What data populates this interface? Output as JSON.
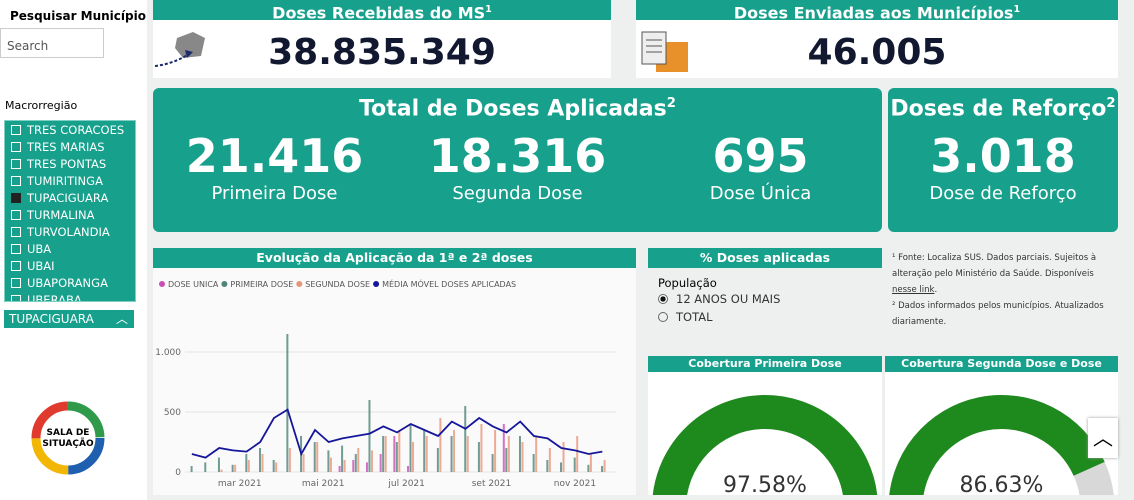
{
  "sidebar": {
    "search_title": "Pesquisar Município",
    "search_placeholder": "Search",
    "slicer_label": "Macrorregião",
    "options": [
      "TRES CORACOES",
      "TRES MARIAS",
      "TRES PONTAS",
      "TUMIRITINGA",
      "TUPACIGUARA",
      "TURMALINA",
      "TURVOLANDIA",
      "UBA",
      "UBAI",
      "UBAPORANGA",
      "UBERABA"
    ],
    "checked_option": 4,
    "selected_value": "TUPACIGUARA",
    "logo_text": [
      "SALA DE",
      "SITUAÇÃO"
    ]
  },
  "cards": {
    "received": {
      "title": "Doses Recebidas do MS",
      "sup": "1",
      "value": "38.835.349"
    },
    "sent": {
      "title": "Doses Enviadas aos Municípios",
      "sup": "1",
      "value": "46.005"
    },
    "applied": {
      "title": "Total de Doses Aplicadas",
      "sup": "2",
      "items": [
        {
          "value": "21.416",
          "label": "Primeira Dose"
        },
        {
          "value": "18.316",
          "label": "Segunda Dose"
        },
        {
          "value": "695",
          "label": "Dose Única"
        }
      ]
    },
    "booster": {
      "title": "Doses de Reforço",
      "sup": "2",
      "value": "3.018",
      "label": "Dose de Reforço"
    }
  },
  "chart_data": {
    "type": "combo",
    "title": "Evolução da Aplicação da 1ª e 2ª doses",
    "x": [
      25,
      35,
      45,
      55,
      65,
      75,
      85,
      95,
      105,
      115,
      125,
      135,
      145,
      155,
      165,
      175,
      185,
      195,
      205,
      215,
      225,
      235,
      245,
      255,
      265,
      275,
      285,
      295,
      305,
      315,
      325
    ],
    "xlim": [
      20,
      335
    ],
    "xticks": [
      {
        "value": 60,
        "label": "mar 2021"
      },
      {
        "value": 121,
        "label": "mai 2021"
      },
      {
        "value": 182,
        "label": "jul 2021"
      },
      {
        "value": 244,
        "label": "set 2021"
      },
      {
        "value": 305,
        "label": "nov 2021"
      }
    ],
    "ylim": [
      0,
      1250
    ],
    "yticks": [
      0,
      500,
      {
        "value": 1000,
        "label": "1.000"
      }
    ],
    "series": [
      {
        "name": "DOSE UNICA",
        "color": "#c94fb5",
        "type": "bar",
        "values": [
          0,
          0,
          0,
          0,
          0,
          0,
          0,
          0,
          0,
          0,
          0,
          50,
          100,
          80,
          150,
          300,
          50,
          0,
          0,
          0,
          0,
          0,
          0,
          400,
          0,
          0,
          0,
          0,
          0,
          0,
          0
        ]
      },
      {
        "name": "PRIMEIRA DOSE",
        "color": "#4f8579",
        "type": "bar",
        "values": [
          50,
          80,
          120,
          60,
          150,
          200,
          100,
          1150,
          300,
          250,
          180,
          220,
          150,
          600,
          300,
          250,
          400,
          350,
          200,
          300,
          550,
          250,
          150,
          200,
          300,
          150,
          100,
          80,
          120,
          60,
          50
        ]
      },
      {
        "name": "SEGUNDA DOSE",
        "color": "#e8967a",
        "type": "bar",
        "values": [
          0,
          0,
          20,
          60,
          100,
          150,
          80,
          200,
          150,
          250,
          120,
          100,
          200,
          180,
          300,
          350,
          250,
          300,
          450,
          350,
          300,
          400,
          350,
          300,
          250,
          300,
          200,
          250,
          300,
          150,
          100
        ]
      },
      {
        "name": "MÉDIA MÓVEL DOSES APLICADAS",
        "color": "#16169a",
        "type": "line",
        "values": [
          150,
          120,
          200,
          180,
          170,
          250,
          450,
          520,
          150,
          350,
          250,
          280,
          300,
          320,
          380,
          330,
          400,
          350,
          300,
          420,
          360,
          450,
          380,
          330,
          420,
          300,
          280,
          200,
          180,
          150,
          170
        ]
      }
    ]
  },
  "percent_panel": {
    "title": "% Doses aplicadas",
    "group_label": "População",
    "options": [
      "12 ANOS OU MAIS",
      "TOTAL"
    ],
    "selected": 0
  },
  "footnotes": {
    "note1": "¹ Fonte: Localiza SUS. Dados parciais. Sujeitos à alteração pelo Ministério da Saúde. Disponíveis ",
    "link": "nesse link",
    "note1_end": ".",
    "note2": "² Dados informados pelos municípios. Atualizados diariamente."
  },
  "gauges": [
    {
      "title": "Cobertura Primeira Dose",
      "value": 97.58,
      "label": "97.58%",
      "color": "#1e8a1e"
    },
    {
      "title": "Cobertura Segunda Dose e Dose Única",
      "value": 86.63,
      "label": "86.63%",
      "color": "#1e8a1e"
    }
  ]
}
